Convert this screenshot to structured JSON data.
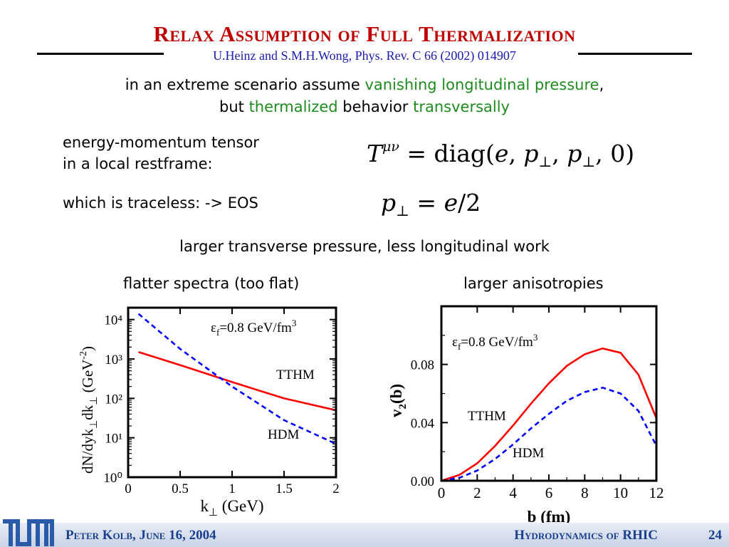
{
  "slide": {
    "title": "Relax Assumption of Full  Thermalization",
    "citation": "U.Heinz and S.M.H.Wong, Phys. Rev. C 66 (2002) 014907",
    "line1": {
      "part1": "in an extreme scenario assume ",
      "part2_green": "vanishing longitudinal pressure",
      "part3": ","
    },
    "line2": {
      "part1": "but ",
      "part2_green": "thermalized",
      "part3": " behavior ",
      "part4_green": "transversally"
    },
    "tensor_label_1": "energy-momentum tensor",
    "tensor_label_2": "in a local restframe:",
    "traceless_label": "which is traceless:  -> EOS",
    "eq1": {
      "lhs": "T",
      "sup": "μν",
      "rhs_pre": " = diag(",
      "e": "e",
      "p": "p",
      "perp": "⊥",
      "close": ", 0)"
    },
    "eq2": {
      "p": "p",
      "perp": "⊥",
      "rest": " = ",
      "e": "e",
      "tail": "/2"
    },
    "summary": "larger transverse pressure, less longitudinal work",
    "caption_left": "flatter spectra (too flat)",
    "caption_right": "larger anisotropies",
    "footer_left": "Peter Kolb, June 16, 2004",
    "footer_right": "Hydrodynamics of RHIC",
    "page_number": "24",
    "logo_text": "TUM"
  },
  "colors": {
    "title": "#c00000",
    "citation": "#1a1ab0",
    "green_text": "#1e8c1e",
    "tthm_line": "#ff0000",
    "hdm_line": "#0000ff",
    "footer_text": "#1a3f8f",
    "logo": "#2a5ba8"
  },
  "chart_data": [
    {
      "type": "line",
      "xlabel": "k⊥ (GeV)",
      "ylabel": "dN/dyk⊥dk⊥ (GeV⁻²)",
      "annotation": "εf=0.8 GeV/fm³",
      "xlim": [
        0,
        2
      ],
      "ylim": [
        1,
        20000
      ],
      "yscale": "log",
      "xticks": [
        "0",
        "0.5",
        "1",
        "1.5",
        "2"
      ],
      "yticks": [
        "10⁰",
        "10¹",
        "10²",
        "10³",
        "10⁴"
      ],
      "series": [
        {
          "name": "TTHM",
          "style": "solid",
          "x": [
            0.1,
            0.5,
            1.0,
            1.5,
            2.0
          ],
          "y": [
            1500,
            700,
            260,
            100,
            50
          ]
        },
        {
          "name": "HDM",
          "style": "dashed",
          "x": [
            0.1,
            0.5,
            1.0,
            1.5,
            2.0
          ],
          "y": [
            14000,
            1800,
            200,
            28,
            7
          ]
        }
      ]
    },
    {
      "type": "line",
      "xlabel": "b (fm)",
      "ylabel": "v2(b)",
      "annotation": "εf=0.8 GeV/fm³",
      "xlim": [
        0,
        12
      ],
      "ylim": [
        0,
        0.12
      ],
      "xticks": [
        "0",
        "2",
        "4",
        "6",
        "8",
        "10",
        "12"
      ],
      "yticks": [
        "0.00",
        "0.04",
        "0.08"
      ],
      "series": [
        {
          "name": "TTHM",
          "style": "solid",
          "x": [
            0,
            1,
            2,
            3,
            4,
            5,
            6,
            7,
            8,
            9,
            10,
            11,
            12
          ],
          "y": [
            0,
            0.004,
            0.012,
            0.024,
            0.038,
            0.053,
            0.067,
            0.079,
            0.087,
            0.091,
            0.088,
            0.073,
            0.043
          ]
        },
        {
          "name": "HDM",
          "style": "dashed",
          "x": [
            0,
            1,
            2,
            3,
            4,
            5,
            6,
            7,
            8,
            9,
            10,
            11,
            12
          ],
          "y": [
            0,
            0.002,
            0.007,
            0.015,
            0.025,
            0.036,
            0.046,
            0.055,
            0.061,
            0.064,
            0.06,
            0.048,
            0.024
          ]
        }
      ]
    }
  ]
}
